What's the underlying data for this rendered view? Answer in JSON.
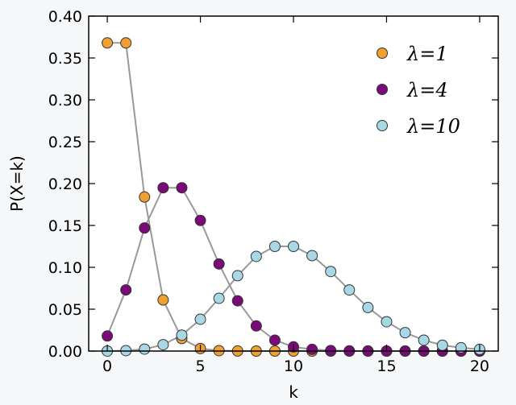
{
  "chart_data": {
    "type": "line",
    "xlabel": "k",
    "ylabel": "P(X=k)",
    "xlim": [
      -1,
      21
    ],
    "ylim": [
      0,
      0.4
    ],
    "x_ticks": [
      0,
      5,
      10,
      15,
      20
    ],
    "y_ticks": [
      0.0,
      0.05,
      0.1,
      0.15,
      0.2,
      0.25,
      0.3,
      0.35,
      0.4
    ],
    "y_tick_labels": [
      "0.00",
      "0.05",
      "0.10",
      "0.15",
      "0.20",
      "0.25",
      "0.30",
      "0.35",
      "0.40"
    ],
    "grid": false,
    "legend_position": "top-right",
    "line_color": "#999999",
    "marker_edge_color": "#333333",
    "x": [
      0,
      1,
      2,
      3,
      4,
      5,
      6,
      7,
      8,
      9,
      10,
      11,
      12,
      13,
      14,
      15,
      16,
      17,
      18,
      19,
      20
    ],
    "series": [
      {
        "name": "λ=1",
        "color": "#f0a030",
        "values": [
          0.368,
          0.368,
          0.184,
          0.061,
          0.015,
          0.003,
          0.0005,
          0.0001,
          0,
          0,
          0,
          0,
          0,
          0,
          0,
          0,
          0,
          0,
          0,
          0,
          0
        ]
      },
      {
        "name": "λ=4",
        "color": "#7a0a7a",
        "values": [
          0.018,
          0.073,
          0.147,
          0.195,
          0.195,
          0.156,
          0.104,
          0.06,
          0.03,
          0.013,
          0.005,
          0.002,
          0.0006,
          0.0002,
          0.0001,
          0,
          0,
          0,
          0,
          0,
          0
        ]
      },
      {
        "name": "λ=10",
        "color": "#a8d8e6",
        "values": [
          5e-05,
          0.0005,
          0.0023,
          0.0076,
          0.019,
          0.038,
          0.063,
          0.09,
          0.113,
          0.125,
          0.125,
          0.114,
          0.095,
          0.073,
          0.052,
          0.035,
          0.022,
          0.013,
          0.007,
          0.004,
          0.002
        ]
      }
    ]
  }
}
